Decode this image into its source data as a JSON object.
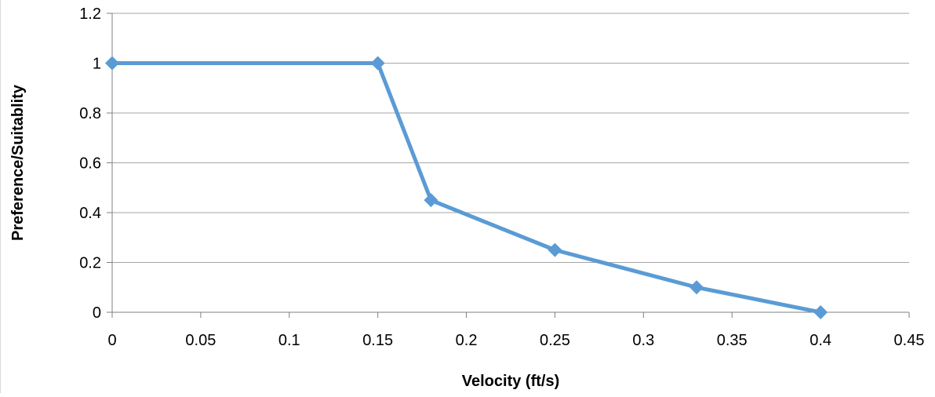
{
  "chart_data": {
    "type": "line",
    "title": "",
    "xlabel": "Velocity (ft/s)",
    "ylabel": "Preference/Suitablity",
    "xlim": [
      0,
      0.45
    ],
    "ylim": [
      0,
      1.2
    ],
    "x_ticks": [
      "0",
      "0.05",
      "0.1",
      "0.15",
      "0.2",
      "0.25",
      "0.3",
      "0.35",
      "0.4",
      "0.45"
    ],
    "y_ticks": [
      "0",
      "0.2",
      "0.4",
      "0.6",
      "0.8",
      "1",
      "1.2"
    ],
    "grid": "horizontal",
    "legend": "none",
    "marker": "diamond",
    "series": [
      {
        "color": "#5b9bd5",
        "points": [
          {
            "x": 0,
            "y": 1
          },
          {
            "x": 0.15,
            "y": 1
          },
          {
            "x": 0.18,
            "y": 0.45
          },
          {
            "x": 0.25,
            "y": 0.25
          },
          {
            "x": 0.33,
            "y": 0.1
          },
          {
            "x": 0.4,
            "y": 0
          }
        ]
      }
    ],
    "colors": {
      "gridline": "#a6a6a6",
      "axis": "#7f7f7f"
    }
  }
}
